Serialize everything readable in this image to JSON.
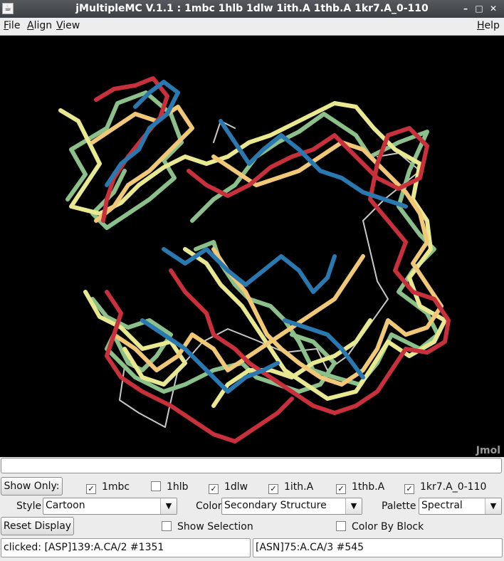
{
  "window": {
    "title": "jMultipleMC V.1.1 : 1mbc 1hlb 1dlw 1ith.A 1thb.A 1kr7.A_0-110",
    "icon": "java-app-icon",
    "controls": {
      "minimize": "–",
      "maximize": "□",
      "close": "✕"
    }
  },
  "menubar": {
    "left": [
      {
        "label": "File",
        "mnemonic": "F",
        "rest": "ile"
      },
      {
        "label": "Align",
        "mnemonic": "A",
        "rest": "lign"
      },
      {
        "label": "View",
        "mnemonic": "V",
        "rest": "iew"
      }
    ],
    "help": {
      "label": "Help",
      "mnemonic": "H",
      "rest": "elp"
    }
  },
  "viewer": {
    "logo": "Jmol",
    "background": "#000000",
    "colors": {
      "red": "#c8303c",
      "blue": "#2a78b0",
      "yellow": "#e8e890",
      "orange": "#f0c878",
      "green": "#8cc08a",
      "gray": "#c8c8c8"
    }
  },
  "command_line": {
    "value": ""
  },
  "structures": {
    "show_only_label": "Show Only:",
    "items": [
      {
        "name": "1mbc",
        "checked": true
      },
      {
        "name": "1hlb",
        "checked": false
      },
      {
        "name": "1dlw",
        "checked": true
      },
      {
        "name": "1ith.A",
        "checked": true
      },
      {
        "name": "1thb.A",
        "checked": true
      },
      {
        "name": "1kr7.A_0-110",
        "checked": true
      }
    ]
  },
  "display": {
    "style_label": "Style",
    "style_value": "Cartoon",
    "color_label": "Color",
    "color_value": "Secondary Structure",
    "palette_label": "Palette",
    "palette_value": "Spectral"
  },
  "actions": {
    "reset_label": "Reset Display",
    "show_selection_label": "Show Selection",
    "show_selection_checked": false,
    "color_by_block_label": "Color By Block",
    "color_by_block_checked": false
  },
  "status": {
    "left": "clicked: [ASP]139:A.CA/2 #1351",
    "right": "[ASN]75:A.CA/3 #545"
  }
}
